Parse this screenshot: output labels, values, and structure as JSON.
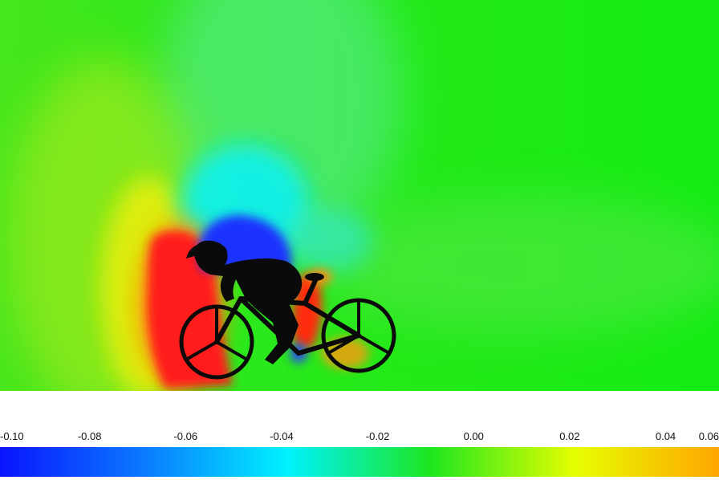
{
  "figure": {
    "subject": "cyclist-on-bicycle-silhouette",
    "field_colors": {
      "background": "#1ee61e",
      "high_pressure": "#ff1a1a",
      "low_pressure": "#1432ff",
      "mid_low": "#00ffee",
      "mid_high": "#ffe600",
      "silhouette": "#0a0a0a"
    }
  },
  "colorbar": {
    "range": [
      -0.1,
      0.07
    ],
    "tick_values": [
      -0.1,
      -0.08,
      -0.06,
      -0.04,
      -0.02,
      0.0,
      0.02,
      0.04,
      0.06
    ],
    "tick_labels": [
      "-0.10",
      "-0.08",
      "-0.06",
      "-0.04",
      "-0.02",
      "0.00",
      "0.02",
      "0.04",
      "0.06"
    ],
    "colormap": [
      "#0a14ff",
      "#0a7aff",
      "#00f2ff",
      "#1ee61e",
      "#e6ff00",
      "#ffa500"
    ]
  }
}
